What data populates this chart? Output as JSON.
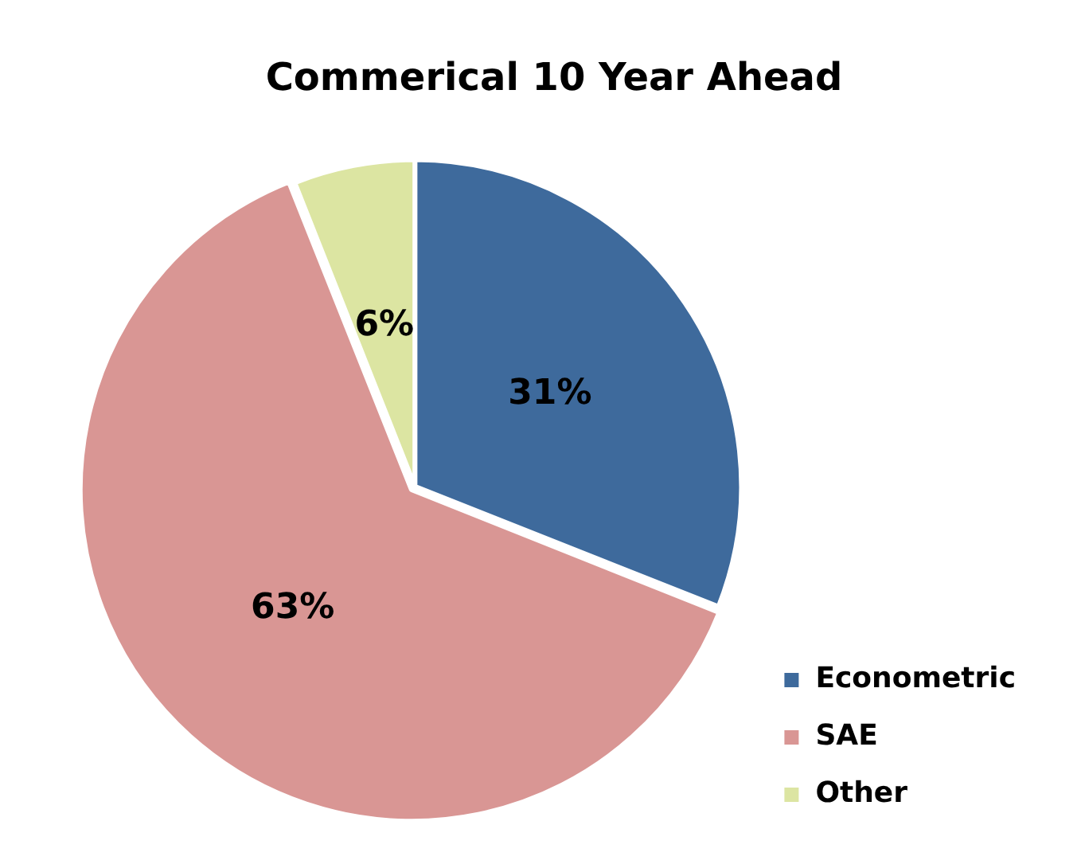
{
  "chart_data": {
    "type": "pie",
    "title": "Commerical 10 Year Ahead",
    "categories": [
      "Econometric",
      "SAE",
      "Other"
    ],
    "values": [
      31,
      63,
      6
    ],
    "value_labels": [
      "31%",
      "63%",
      "6%"
    ],
    "colors": [
      "#3e6a9c",
      "#d99694",
      "#dce5a2"
    ],
    "legend": "right"
  }
}
